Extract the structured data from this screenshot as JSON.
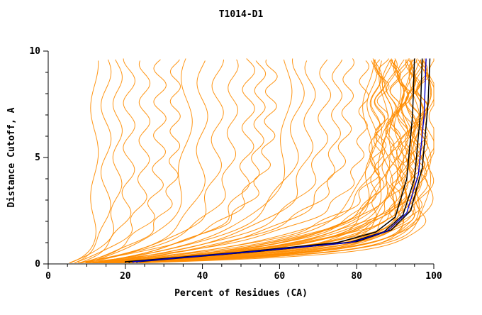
{
  "chart_data": {
    "type": "line",
    "title": "T1014-D1",
    "xlabel": "Percent of Residues (CA)",
    "ylabel": "Distance Cutoff, A",
    "xlim": [
      0,
      100
    ],
    "ylim": [
      0,
      10
    ],
    "x_ticks": [
      0,
      20,
      40,
      60,
      80,
      100
    ],
    "y_ticks": [
      0,
      5,
      10
    ],
    "x_minor_step": 5,
    "y_minor_step": 1,
    "grid": "off",
    "legend": "none",
    "colors": {
      "model_curves": "#ff8c00",
      "top_model_curves": "#000000",
      "best_model_curve": "#0000cd",
      "axis": "#000000",
      "background": "#ffffff"
    },
    "curves": {
      "orange_params_note": "each curve: [x_at_cutoff0, x_at_cutoff10, rise_rate, wiggle_amplitude]; x = percent of residues under distance cutoff y",
      "orange": [
        [
          5,
          12,
          2.2,
          1.0
        ],
        [
          6,
          15,
          1.6,
          1.3
        ],
        [
          5,
          18,
          1.3,
          1.2
        ],
        [
          7,
          21,
          1.1,
          1.5
        ],
        [
          6,
          25,
          1.0,
          1.4
        ],
        [
          8,
          29,
          0.9,
          1.6
        ],
        [
          7,
          33,
          0.9,
          1.3
        ],
        [
          9,
          36,
          0.8,
          1.5
        ],
        [
          6,
          40,
          1.0,
          1.4
        ],
        [
          8,
          44,
          0.9,
          1.5
        ],
        [
          7,
          48,
          0.8,
          1.3
        ],
        [
          9,
          52,
          0.9,
          1.6
        ],
        [
          6,
          55,
          0.8,
          1.4
        ],
        [
          10,
          58,
          0.7,
          1.5
        ],
        [
          8,
          62,
          0.8,
          1.3
        ],
        [
          11,
          65,
          0.7,
          1.6
        ],
        [
          9,
          68,
          0.8,
          1.4
        ],
        [
          12,
          72,
          0.7,
          1.5
        ],
        [
          10,
          75,
          0.8,
          1.3
        ],
        [
          13,
          78,
          0.7,
          1.4
        ],
        [
          5,
          82,
          0.8,
          1.2
        ],
        [
          7,
          83,
          1.0,
          1.4
        ],
        [
          9,
          84,
          1.2,
          1.3
        ],
        [
          11,
          85,
          1.4,
          1.5
        ],
        [
          6,
          85,
          0.9,
          1.2
        ],
        [
          8,
          86,
          1.1,
          1.4
        ],
        [
          10,
          86,
          1.6,
          1.3
        ],
        [
          12,
          87,
          0.8,
          1.5
        ],
        [
          5,
          87,
          1.3,
          1.2
        ],
        [
          7,
          88,
          1.8,
          1.4
        ],
        [
          9,
          88,
          1.0,
          1.3
        ],
        [
          11,
          89,
          2.0,
          1.5
        ],
        [
          13,
          89,
          0.9,
          1.2
        ],
        [
          6,
          90,
          1.5,
          1.4
        ],
        [
          8,
          90,
          2.2,
          1.3
        ],
        [
          10,
          90,
          1.1,
          1.5
        ],
        [
          12,
          91,
          1.7,
          1.2
        ],
        [
          14,
          91,
          0.9,
          1.4
        ],
        [
          5,
          92,
          2.4,
          1.3
        ],
        [
          7,
          92,
          1.2,
          1.5
        ],
        [
          9,
          92,
          1.9,
          1.2
        ],
        [
          11,
          93,
          1.0,
          1.4
        ],
        [
          13,
          93,
          2.1,
          1.3
        ],
        [
          15,
          93,
          1.3,
          1.5
        ],
        [
          6,
          94,
          1.6,
          1.2
        ],
        [
          8,
          94,
          2.5,
          1.4
        ],
        [
          10,
          94,
          1.1,
          1.3
        ],
        [
          12,
          95,
          1.8,
          1.5
        ],
        [
          14,
          95,
          1.0,
          1.2
        ],
        [
          16,
          95,
          2.3,
          1.4
        ],
        [
          7,
          96,
          1.4,
          1.3
        ],
        [
          9,
          96,
          2.0,
          1.5
        ],
        [
          11,
          96,
          1.2,
          1.2
        ],
        [
          13,
          97,
          2.6,
          1.4
        ],
        [
          15,
          97,
          1.5,
          1.3
        ],
        [
          17,
          97,
          1.0,
          1.5
        ],
        [
          8,
          98,
          2.2,
          1.2
        ],
        [
          10,
          98,
          1.3,
          1.4
        ],
        [
          12,
          99,
          1.7,
          1.3
        ],
        [
          14,
          100,
          1.1,
          1.2
        ]
      ],
      "black_anchors_note": "each curve: list of [percent, cutoff] points",
      "black": [
        [
          [
            20,
            0.1
          ],
          [
            50,
            0.55
          ],
          [
            75,
            1.0
          ],
          [
            85,
            1.5
          ],
          [
            90,
            2.2
          ],
          [
            93,
            4.0
          ],
          [
            94.5,
            7.0
          ],
          [
            95,
            9.7
          ]
        ],
        [
          [
            21,
            0.1
          ],
          [
            52,
            0.55
          ],
          [
            78,
            1.0
          ],
          [
            87,
            1.5
          ],
          [
            92,
            2.3
          ],
          [
            95,
            4.0
          ],
          [
            96.5,
            7.0
          ],
          [
            97,
            9.7
          ]
        ],
        [
          [
            23,
            0.1
          ],
          [
            55,
            0.6
          ],
          [
            80,
            1.05
          ],
          [
            89,
            1.6
          ],
          [
            94,
            2.5
          ],
          [
            97,
            4.5
          ],
          [
            98.5,
            7.5
          ],
          [
            99,
            9.7
          ]
        ]
      ],
      "blue": [
        [
          [
            22,
            0.1
          ],
          [
            53,
            0.58
          ],
          [
            79,
            1.02
          ],
          [
            88,
            1.55
          ],
          [
            93,
            2.4
          ],
          [
            96,
            4.2
          ],
          [
            97.5,
            7.0
          ],
          [
            98,
            9.7
          ]
        ]
      ]
    }
  }
}
